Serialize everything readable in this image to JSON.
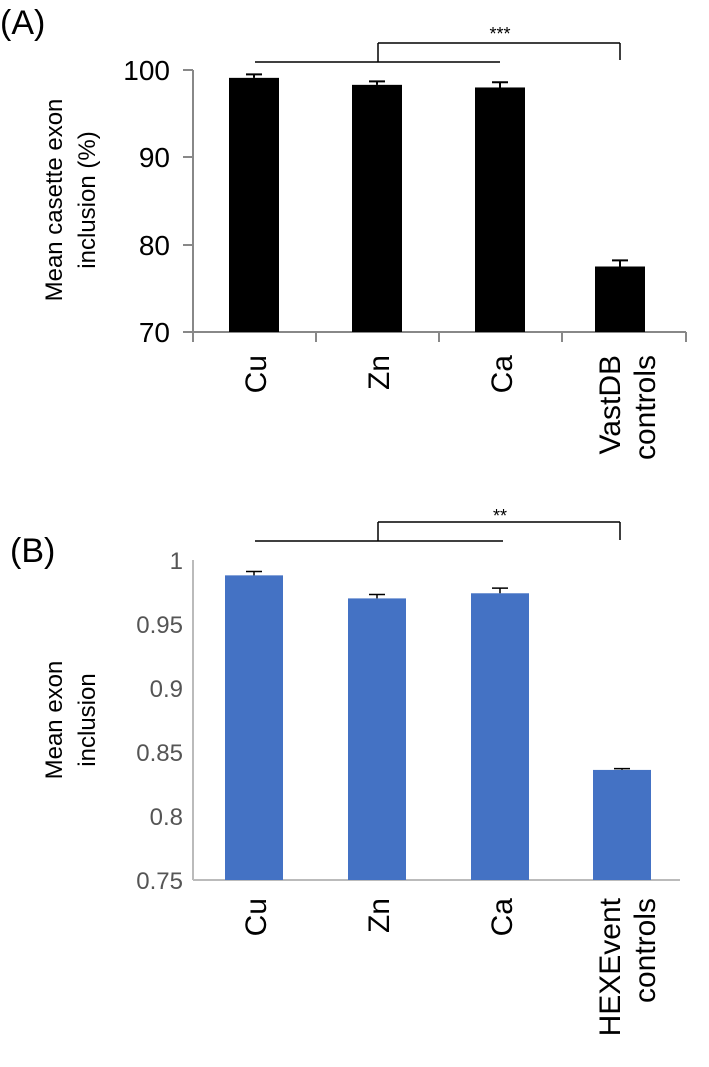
{
  "chart_data": [
    {
      "type": "bar",
      "panel_label": "(A)",
      "title": "",
      "xlabel": "",
      "ylabel_lines": [
        "Mean casette exon",
        "inclusion (%)"
      ],
      "categories": [
        [
          "Cu"
        ],
        [
          "Zn"
        ],
        [
          "Ca"
        ],
        [
          "VastDB",
          "controls"
        ]
      ],
      "values": [
        99.1,
        98.3,
        98.0,
        77.5
      ],
      "errors": [
        0.4,
        0.4,
        0.6,
        0.7
      ],
      "ylim": [
        70,
        100
      ],
      "yticks": [
        70,
        80,
        90,
        100
      ],
      "ytick_labels": [
        "70",
        "80",
        "90",
        "100"
      ],
      "bar_color": "#000000",
      "significance": "***",
      "grid": false
    },
    {
      "type": "bar",
      "panel_label": "(B)",
      "title": "",
      "xlabel": "",
      "ylabel_lines": [
        "Mean exon",
        "inclusion"
      ],
      "categories": [
        [
          "Cu"
        ],
        [
          "Zn"
        ],
        [
          "Ca"
        ],
        [
          "HEXEvent",
          "controls"
        ]
      ],
      "values": [
        0.988,
        0.97,
        0.974,
        0.836
      ],
      "errors": [
        0.003,
        0.003,
        0.004,
        0.001
      ],
      "ylim": [
        0.75,
        1
      ],
      "yticks": [
        0.75,
        0.8,
        0.85,
        0.9,
        0.95,
        1
      ],
      "ytick_labels": [
        "0.75",
        "0.8",
        "0.85",
        "0.9",
        "0.95",
        "1"
      ],
      "bar_color": "#4472c4",
      "significance": "**",
      "grid": false
    }
  ]
}
